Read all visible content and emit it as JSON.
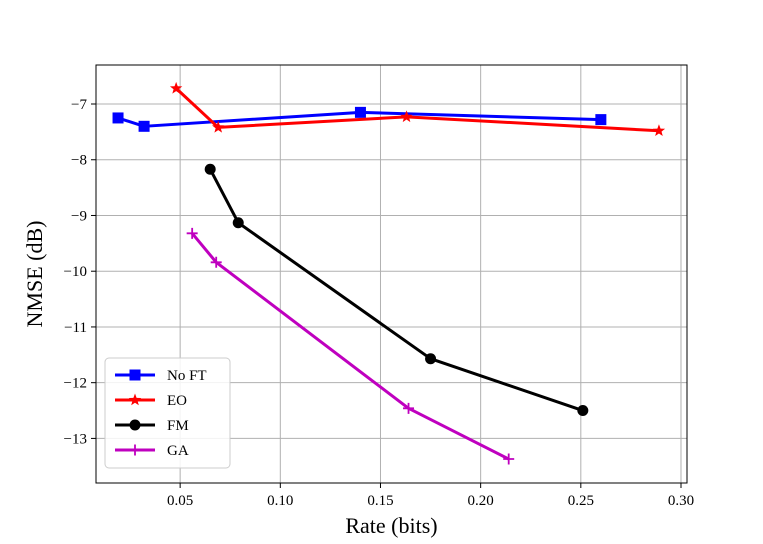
{
  "chart_data": {
    "type": "line",
    "xlabel": "Rate (bits)",
    "ylabel": "NMSE (dB)",
    "xlim": [
      0.008,
      0.303
    ],
    "ylim": [
      -13.8,
      -6.3
    ],
    "xticks": [
      0.05,
      0.1,
      0.15,
      0.2,
      0.25,
      0.3
    ],
    "xtick_labels": [
      "0.05",
      "0.10",
      "0.15",
      "0.20",
      "0.25",
      "0.30"
    ],
    "yticks": [
      -13,
      -12,
      -11,
      -10,
      -9,
      -8,
      -7
    ],
    "ytick_labels": [
      "−13",
      "−12",
      "−11",
      "−10",
      "−9",
      "−8",
      "−7"
    ],
    "grid": true,
    "legend_position": "lower-left",
    "series": [
      {
        "name": "No FT",
        "color": "#0000ff",
        "marker": "square",
        "x": [
          0.019,
          0.032,
          0.14,
          0.26
        ],
        "y": [
          -7.25,
          -7.4,
          -7.15,
          -7.28
        ]
      },
      {
        "name": "EO",
        "color": "#ff0000",
        "marker": "star",
        "x": [
          0.048,
          0.069,
          0.163,
          0.289
        ],
        "y": [
          -6.72,
          -7.42,
          -7.23,
          -7.48
        ]
      },
      {
        "name": "FM",
        "color": "#000000",
        "marker": "circle",
        "x": [
          0.065,
          0.079,
          0.175,
          0.251
        ],
        "y": [
          -8.17,
          -9.13,
          -11.57,
          -12.5
        ]
      },
      {
        "name": "GA",
        "color": "#bf00bf",
        "marker": "plus",
        "x": [
          0.056,
          0.068,
          0.164,
          0.214
        ],
        "y": [
          -9.32,
          -9.84,
          -12.46,
          -13.37
        ]
      }
    ]
  }
}
